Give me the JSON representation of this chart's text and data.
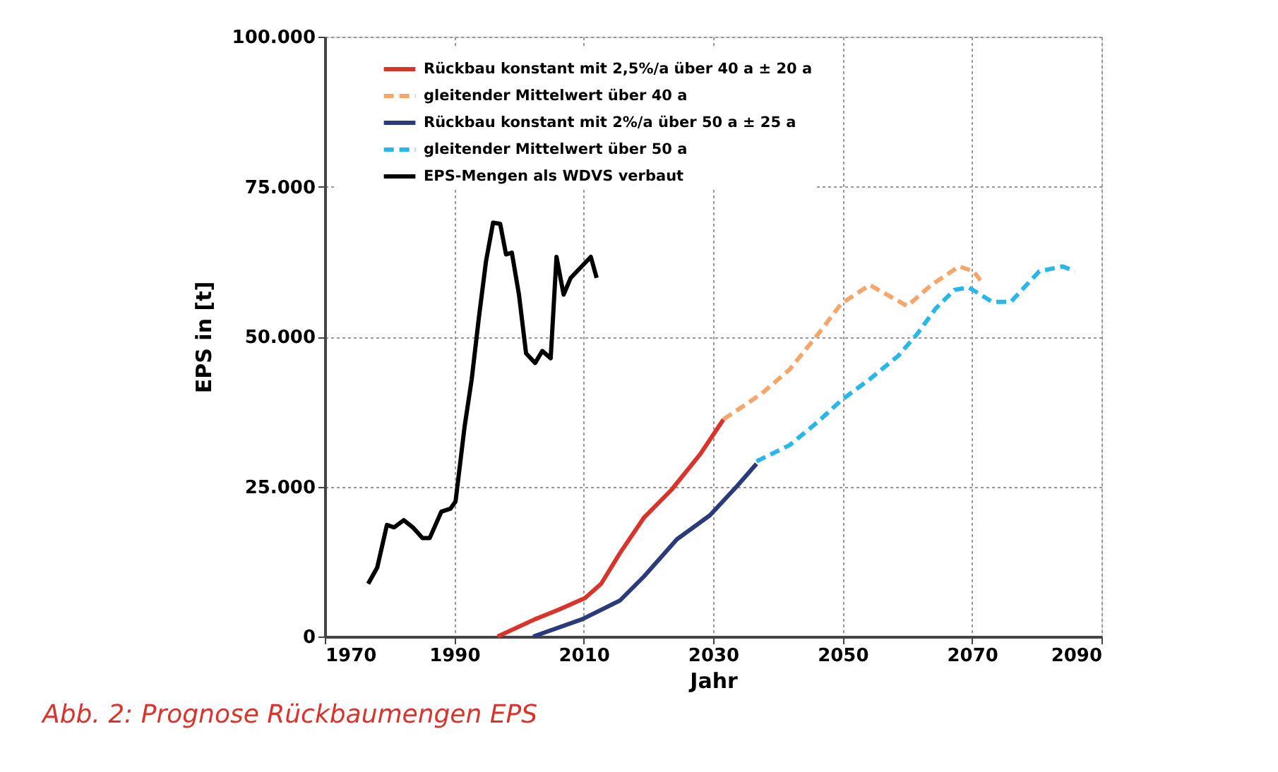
{
  "chart_data": {
    "type": "line",
    "xlabel": "Jahr",
    "ylabel": "EPS in [t]",
    "xlim": [
      1970,
      2090
    ],
    "ylim": [
      0,
      100000
    ],
    "xticks": [
      1970,
      1990,
      2010,
      2030,
      2050,
      2070,
      2090
    ],
    "yticks": [
      {
        "value": 0,
        "label": "0"
      },
      {
        "value": 25000,
        "label": "25.000"
      },
      {
        "value": 50000,
        "label": "50.000"
      },
      {
        "value": 75000,
        "label": "75.000"
      },
      {
        "value": 100000,
        "label": "100.000"
      }
    ],
    "grid": true,
    "legend": "top left",
    "marker": "none",
    "annotations": [
      "Abb. 2: Prognose Rückbaumengen EPS"
    ],
    "series": [
      {
        "name": "Rückbau konstant mit 2,5%/a über 40 a ± 20 a",
        "color": "#d9342b",
        "line_style": "solid",
        "x": [
          1996.7,
          2002.5,
          2006.2,
          2010.2,
          2012.7,
          2015.6,
          2019.3,
          2023.6,
          2028,
          2031.6
        ],
        "values": [
          0,
          2900,
          4500,
          6400,
          8800,
          13900,
          19800,
          24500,
          30400,
          36200
        ]
      },
      {
        "name": "gleitender Mittelwert über 40 a",
        "color": "#f7a66b",
        "line_style": "dashed",
        "x": [
          2031.6,
          2037.5,
          2041.8,
          2046.2,
          2049.8,
          2054.2,
          2060,
          2063.7,
          2068,
          2070.2,
          2071.3
        ],
        "values": [
          36200,
          40500,
          44500,
          50400,
          55500,
          58600,
          55100,
          58600,
          61700,
          60900,
          59400
        ]
      },
      {
        "name": "Rückbau konstant mit 2%/a über 50 a ± 25 a",
        "color": "#2b3a7a",
        "line_style": "solid",
        "x": [
          2002.2,
          2009.8,
          2015.6,
          2019.3,
          2024.4,
          2029.5,
          2033.8,
          2036.7
        ],
        "values": [
          0,
          2900,
          6000,
          10000,
          16200,
          20200,
          25200,
          28800
        ]
      },
      {
        "name": "gleitender Mittelwert über 50 a",
        "color": "#29b6ea",
        "line_style": "dashed",
        "x": [
          2036.7,
          2041.8,
          2046.2,
          2049.8,
          2054.2,
          2058.6,
          2061.5,
          2064.4,
          2067.3,
          2069.5,
          2073.1,
          2076,
          2080.4,
          2084,
          2085.9
        ],
        "values": [
          29200,
          31900,
          35800,
          39400,
          42900,
          46800,
          50400,
          54700,
          57800,
          58200,
          55800,
          55800,
          60900,
          61700,
          60900
        ]
      },
      {
        "name": "EPS-Mengen als WDVS verbaut",
        "color": "#000000",
        "line_style": "solid",
        "x": [
          1976.7,
          1978.1,
          1979.6,
          1980.7,
          1982.2,
          1983.6,
          1985.1,
          1986.2,
          1988,
          1989.4,
          1990.2,
          1991.6,
          1992.7,
          1993.8,
          1994.9,
          1996,
          1997.1,
          1998,
          1998.9,
          2000,
          2001.1,
          2002.5,
          2003.6,
          2004.9,
          2005.8,
          2006.9,
          2008,
          2011.1,
          2012
        ],
        "values": [
          8800,
          11500,
          18600,
          18200,
          19400,
          18200,
          16400,
          16400,
          20800,
          21300,
          22500,
          35000,
          42900,
          53100,
          62500,
          69000,
          68800,
          63700,
          64000,
          57000,
          47200,
          45600,
          47600,
          46400,
          63300,
          57000,
          59800,
          63300,
          59800
        ]
      }
    ]
  }
}
